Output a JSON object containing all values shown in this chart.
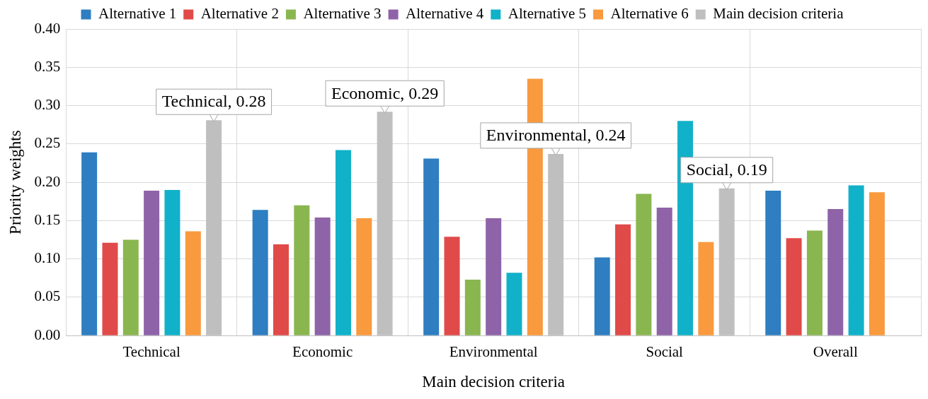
{
  "chart_data": {
    "type": "bar",
    "xlabel": "Main decision criteria",
    "ylabel": "Priority weights",
    "categories": [
      "Technical",
      "Economic",
      "Environmental",
      "Social",
      "Overall"
    ],
    "series": [
      {
        "name": "Alternative 1",
        "color": "#2e7ec1",
        "values": [
          0.239,
          0.164,
          0.231,
          0.102,
          0.189
        ]
      },
      {
        "name": "Alternative 2",
        "color": "#e04a49",
        "values": [
          0.121,
          0.119,
          0.129,
          0.145,
          0.127
        ]
      },
      {
        "name": "Alternative 3",
        "color": "#8ab650",
        "values": [
          0.125,
          0.17,
          0.073,
          0.185,
          0.137
        ]
      },
      {
        "name": "Alternative 4",
        "color": "#8e63a8",
        "values": [
          0.189,
          0.154,
          0.153,
          0.167,
          0.165
        ]
      },
      {
        "name": "Alternative 5",
        "color": "#11b1c9",
        "values": [
          0.19,
          0.242,
          0.082,
          0.28,
          0.196
        ]
      },
      {
        "name": "Alternative 6",
        "color": "#f99a3e",
        "values": [
          0.136,
          0.153,
          0.335,
          0.122,
          0.187
        ]
      },
      {
        "name": "Main decision criteria",
        "color": "#bfbfbf",
        "values": [
          0.281,
          0.292,
          0.237,
          0.192,
          null
        ],
        "value_labels": [
          "Technical, 0.28",
          "Economic, 0.29",
          "Environmental, 0.24",
          "Social, 0.19",
          null
        ]
      }
    ],
    "ylim": [
      0,
      0.4
    ],
    "yticks": [
      {
        "value": 0,
        "label": "0.00"
      },
      {
        "value": 0.05,
        "label": "0.05"
      },
      {
        "value": 0.1,
        "label": "0.10"
      },
      {
        "value": 0.15,
        "label": "0.15"
      },
      {
        "value": 0.2,
        "label": "0.20"
      },
      {
        "value": 0.25,
        "label": "0.25"
      },
      {
        "value": 0.3,
        "label": "0.30"
      },
      {
        "value": 0.35,
        "label": "0.35"
      },
      {
        "value": 0.4,
        "label": "0.40"
      }
    ],
    "grid": true,
    "legend": "top"
  }
}
